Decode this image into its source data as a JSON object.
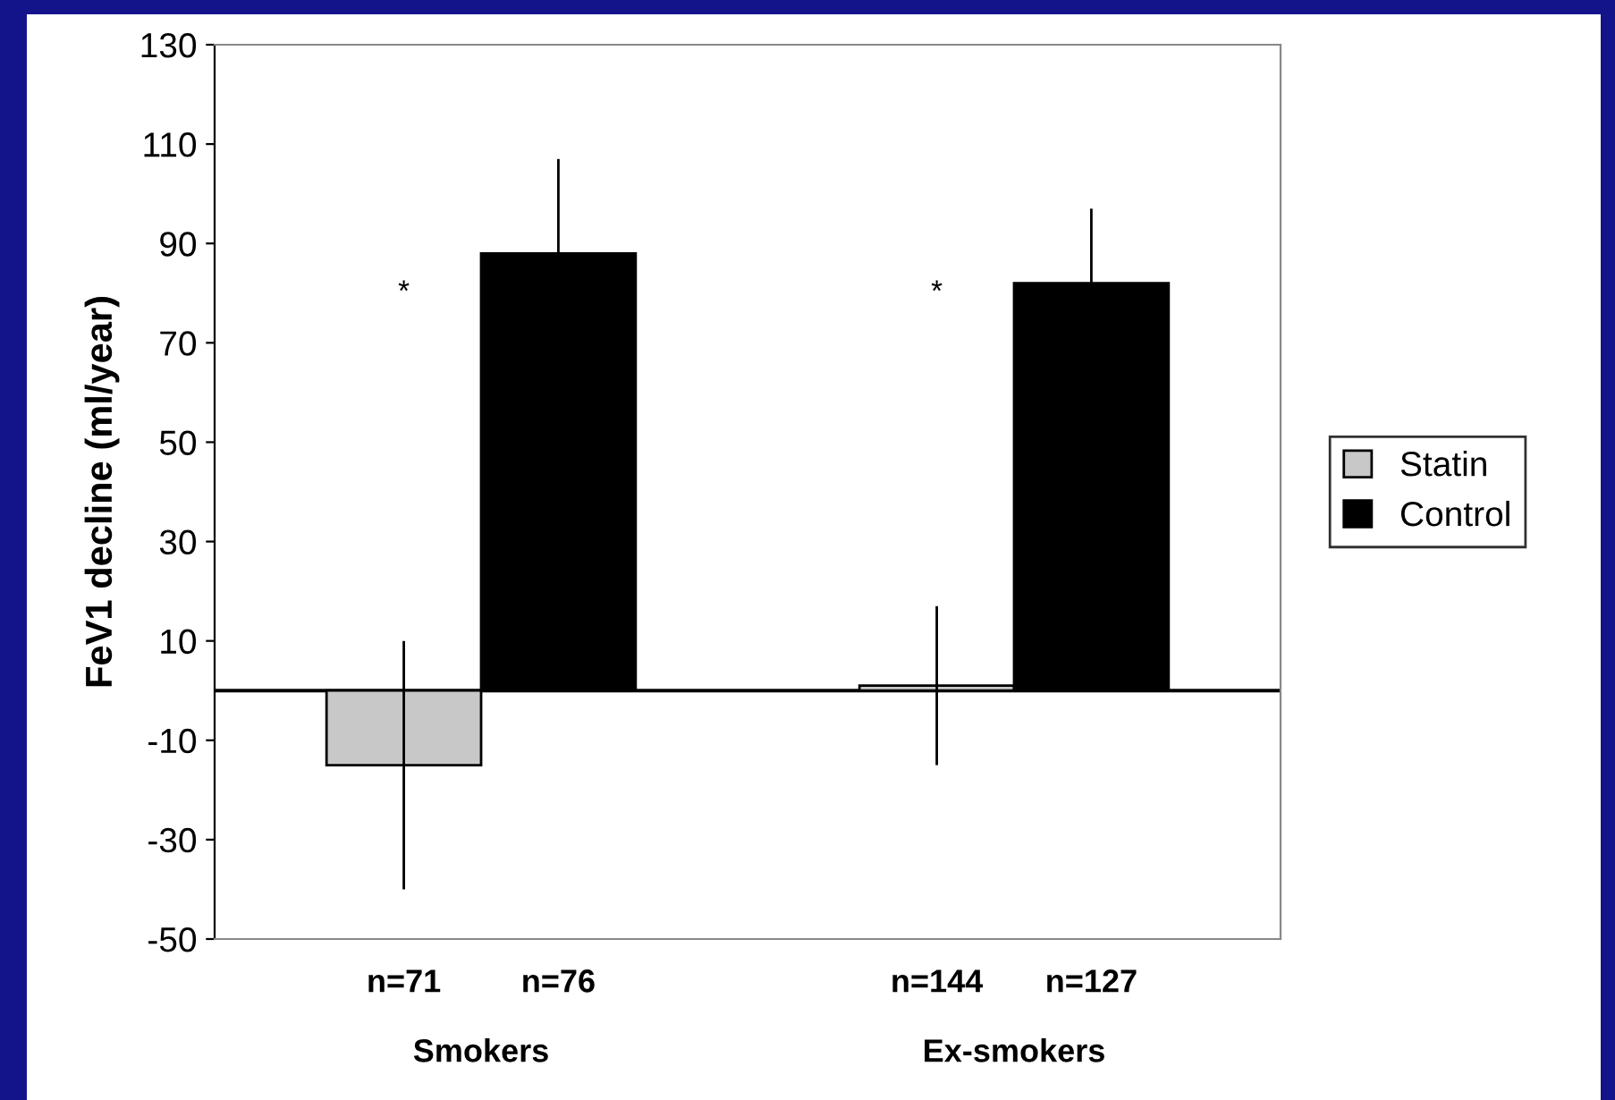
{
  "chart_data": {
    "type": "bar",
    "ylabel": "FeV1 decline (ml/year)",
    "categories": [
      "Smokers",
      "Ex-smokers"
    ],
    "series": [
      {
        "name": "Statin",
        "color": "#c8c8c8",
        "values": [
          -15,
          1
        ],
        "errors": [
          25,
          16
        ]
      },
      {
        "name": "Control",
        "color": "#000000",
        "values": [
          88,
          82
        ],
        "errors": [
          19,
          15
        ]
      }
    ],
    "ylim": [
      -50,
      130
    ],
    "yticks": [
      -50,
      -30,
      -10,
      10,
      30,
      50,
      70,
      90,
      110,
      130
    ],
    "ref_lines": [
      {
        "axis": "y",
        "value": 0,
        "color": "#000000"
      }
    ],
    "annotations": [
      "n=71",
      "n=76",
      "n=144",
      "n=127",
      "*",
      "*"
    ],
    "legend": "right",
    "grid": false
  }
}
